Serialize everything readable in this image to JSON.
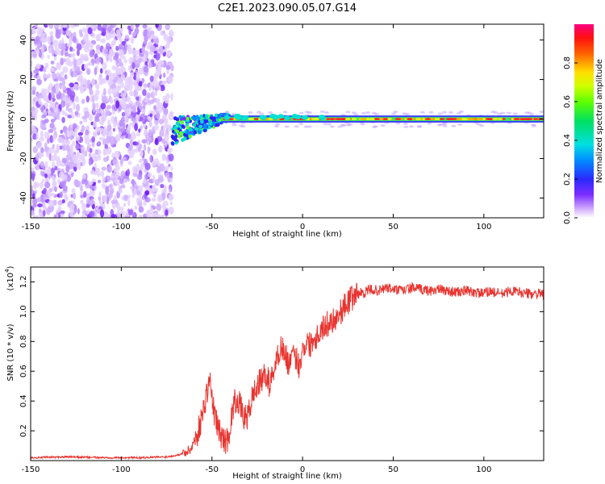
{
  "title": "C2E1.2023.090.05.07.G14",
  "chart_data": [
    {
      "type": "heatmap",
      "xlabel": "Height of straight line (km)",
      "ylabel": "Frequency (Hz)",
      "xlim": [
        -150,
        133
      ],
      "ylim": [
        -50,
        48
      ],
      "xticks": [
        -150,
        -100,
        -50,
        0,
        50,
        100
      ],
      "yticks": [
        -40,
        -20,
        0,
        20,
        40
      ],
      "colorbar": {
        "label": "Normalized spectral amplitude",
        "range": [
          0,
          1
        ],
        "ticks": [
          "0.0",
          "0.2",
          "0.4",
          "0.6",
          "0.8"
        ],
        "tick_values": [
          0,
          0.2,
          0.4,
          0.6,
          0.8
        ]
      },
      "regions": [
        {
          "description_x": [
            -150,
            -72
          ],
          "amplitude": 0.12,
          "freq_spread": [
            -50,
            48
          ]
        },
        {
          "description_x": [
            -72,
            -40
          ],
          "amplitude": 0.45,
          "freq_center": [
            -5,
            2
          ]
        },
        {
          "description_x": [
            -40,
            133
          ],
          "amplitude": 0.8,
          "freq_center": 0
        }
      ]
    },
    {
      "type": "line",
      "xlabel": "Height of straight line (km)",
      "ylabel": "SNR (10 * v/v)",
      "y_multiplier_label": "(x10",
      "y_multiplier_exp": "4",
      "xlim": [
        -150,
        133
      ],
      "ylim": [
        0,
        1.3
      ],
      "xticks": [
        -150,
        -100,
        -50,
        0,
        50,
        100
      ],
      "yticks": [
        "0.2",
        "0.4",
        "0.6",
        "0.8",
        "1.0",
        "1.2"
      ],
      "ytick_values": [
        0.2,
        0.4,
        0.6,
        0.8,
        1.0,
        1.2
      ],
      "color": "#e8342f",
      "series": [
        {
          "x": [
            -150,
            -130,
            -110,
            -90,
            -75,
            -68,
            -62,
            -58,
            -55,
            -53,
            -51,
            -50,
            -48,
            -46,
            -44,
            -42,
            -40,
            -38,
            -36,
            -34,
            -32,
            -30,
            -28,
            -26,
            -24,
            -22,
            -20,
            -18,
            -16,
            -14,
            -12,
            -10,
            -8,
            -6,
            -4,
            -2,
            0,
            2,
            4,
            6,
            8,
            10,
            12,
            14,
            16,
            18,
            20,
            22,
            24,
            26,
            28,
            30,
            34,
            38,
            42,
            46,
            50,
            55,
            60,
            65,
            70,
            75,
            80,
            85,
            90,
            95,
            100,
            103,
            105,
            110,
            115,
            120,
            125,
            130,
            133
          ],
          "y": [
            0.02,
            0.025,
            0.02,
            0.02,
            0.025,
            0.04,
            0.07,
            0.18,
            0.32,
            0.45,
            0.55,
            0.4,
            0.28,
            0.2,
            0.15,
            0.12,
            0.22,
            0.38,
            0.42,
            0.35,
            0.28,
            0.3,
            0.42,
            0.48,
            0.52,
            0.55,
            0.58,
            0.5,
            0.62,
            0.68,
            0.78,
            0.72,
            0.66,
            0.68,
            0.7,
            0.64,
            0.74,
            0.8,
            0.78,
            0.82,
            0.84,
            0.88,
            0.9,
            0.92,
            0.94,
            0.96,
            0.98,
            1.02,
            1.05,
            1.08,
            1.1,
            1.12,
            1.13,
            1.15,
            1.14,
            1.16,
            1.15,
            1.14,
            1.16,
            1.15,
            1.14,
            1.15,
            1.14,
            1.13,
            1.14,
            1.13,
            1.12,
            1.14,
            1.13,
            1.12,
            1.14,
            1.13,
            1.12,
            1.12,
            1.11
          ]
        }
      ]
    }
  ]
}
